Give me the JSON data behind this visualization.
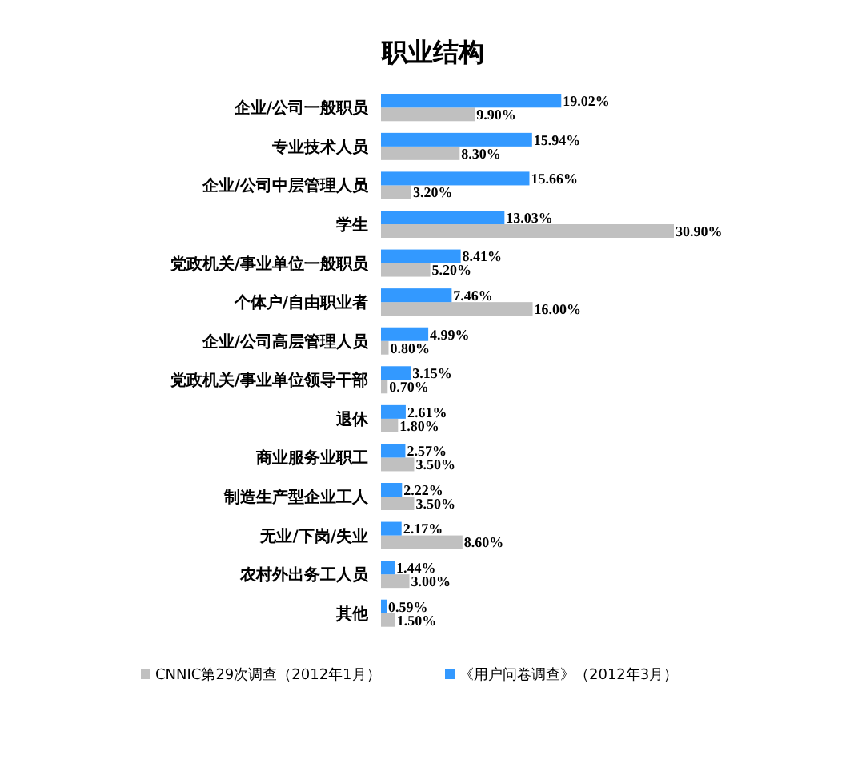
{
  "chart_data": {
    "type": "bar",
    "orientation": "horizontal",
    "title": "职业结构",
    "categories": [
      "企业/公司一般职员",
      "专业技术人员",
      "企业/公司中层管理人员",
      "学生",
      "党政机关/事业单位一般职员",
      "个体户/自由职业者",
      "企业/公司高层管理人员",
      "党政机关/事业单位领导干部",
      "退休",
      "商业服务业职工",
      "制造生产型企业工人",
      "无业/下岗/失业",
      "农村外出务工人员",
      "其他"
    ],
    "series": [
      {
        "name": "CNNIC第29次调查（2012年1月）",
        "color": "#c0c0c0",
        "values": [
          9.9,
          8.3,
          3.2,
          30.9,
          5.2,
          16.0,
          0.8,
          0.7,
          1.8,
          3.5,
          3.5,
          8.6,
          3.0,
          1.5
        ],
        "value_labels": [
          "9.90%",
          "8.30%",
          "3.20%",
          "30.90%",
          "5.20%",
          "16.00%",
          "0.80%",
          "0.70%",
          "1.80%",
          "3.50%",
          "3.50%",
          "8.60%",
          "3.00%",
          "1.50%"
        ]
      },
      {
        "name": "《用户问卷调查》（2012年3月）",
        "color": "#3399ff",
        "values": [
          19.02,
          15.94,
          15.66,
          13.03,
          8.41,
          7.46,
          4.99,
          3.15,
          2.61,
          2.57,
          2.22,
          2.17,
          1.44,
          0.59
        ],
        "value_labels": [
          "19.02%",
          "15.94%",
          "15.66%",
          "13.03%",
          "8.41%",
          "7.46%",
          "4.99%",
          "3.15%",
          "2.61%",
          "2.57%",
          "2.22%",
          "2.17%",
          "1.44%",
          "0.59%"
        ]
      }
    ],
    "relative": false,
    "legend": "bottom"
  }
}
